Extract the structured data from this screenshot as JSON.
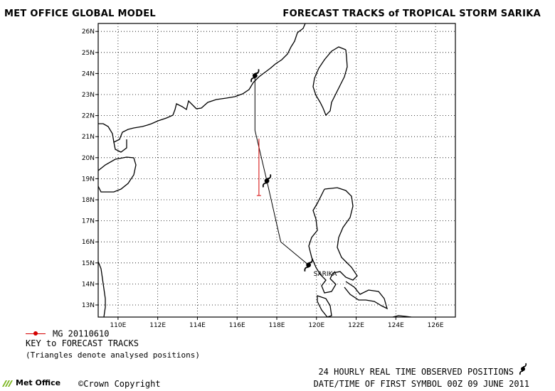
{
  "header": {
    "left_title": "MET OFFICE GLOBAL MODEL",
    "right_title": "FORECAST TRACKS of TROPICAL STORM SARIKA"
  },
  "map": {
    "lon_labels": [
      "110E",
      "112E",
      "114E",
      "116E",
      "118E",
      "120E",
      "122E",
      "124E",
      "126E"
    ],
    "lat_labels": [
      "26N",
      "25N",
      "24N",
      "23N",
      "22N",
      "21N",
      "20N",
      "19N",
      "18N",
      "17N",
      "16N",
      "15N",
      "14N",
      "13N"
    ],
    "storm_label": "SARIKA",
    "colors": {
      "forecast_track": "#d40000",
      "observed_track": "#000000",
      "coast": "#000000",
      "grid": "#000000"
    },
    "observed_track": [
      {
        "lon": 116.9,
        "lat": 23.9
      },
      {
        "lon": 116.9,
        "lat": 21.3
      },
      {
        "lon": 117.5,
        "lat": 18.9
      },
      {
        "lon": 118.2,
        "lat": 16.0
      },
      {
        "lon": 119.6,
        "lat": 14.9
      }
    ],
    "observed_symbols": [
      {
        "lon": 117.5,
        "lat": 18.9
      },
      {
        "lon": 119.6,
        "lat": 14.9
      }
    ],
    "observed_symbol_final": {
      "lon": 116.9,
      "lat": 23.9
    },
    "forecast_tracks": [
      {
        "name": "MG 20110610",
        "points": [
          {
            "lon": 117.1,
            "lat": 20.9
          },
          {
            "lon": 117.1,
            "lat": 18.2
          }
        ]
      }
    ]
  },
  "legend": {
    "entry": "MG 20110610",
    "key_title": "KEY to FORECAST TRACKS",
    "key_note": "(Triangles denote analysed positions)"
  },
  "footer": {
    "logo": "Met Office",
    "copyright": "©Crown Copyright",
    "observed_positions": "24 HOURLY REAL TIME OBSERVED POSITIONS",
    "date_time": "DATE/TIME OF FIRST SYMBOL 00Z 09 JUNE 2011"
  }
}
